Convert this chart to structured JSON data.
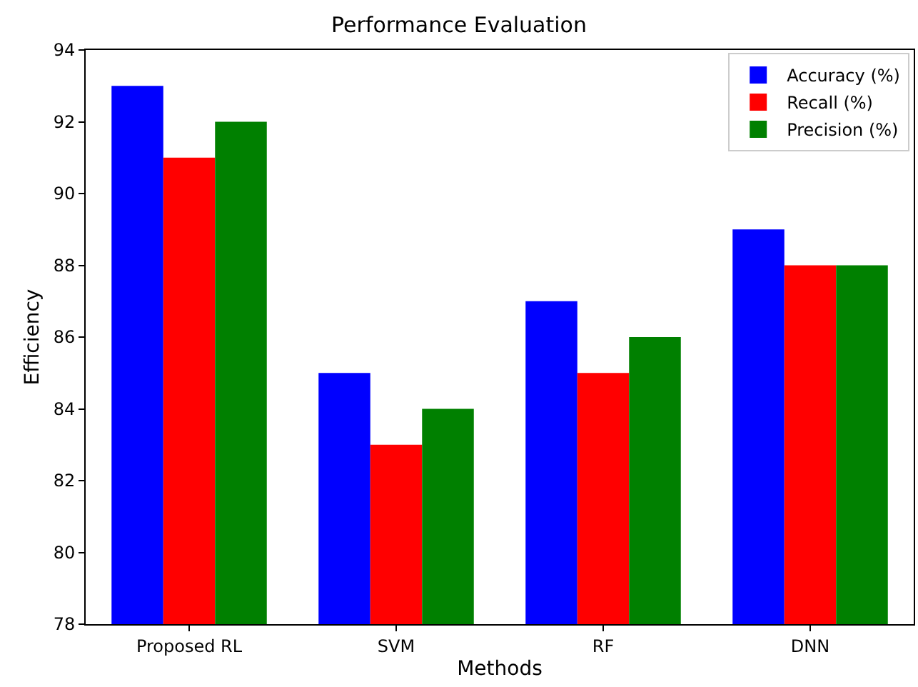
{
  "chart_data": {
    "type": "bar",
    "title": "Performance Evaluation",
    "xlabel": "Methods",
    "ylabel": "Efficiency",
    "categories": [
      "Proposed RL",
      "SVM",
      "RF",
      "DNN"
    ],
    "series": [
      {
        "name": "Accuracy (%)",
        "color": "#0000ff",
        "values": [
          93,
          85,
          87,
          89
        ]
      },
      {
        "name": "Recall (%)",
        "color": "#ff0000",
        "values": [
          91,
          83,
          85,
          88
        ]
      },
      {
        "name": "Precision (%)",
        "color": "#008000",
        "values": [
          92,
          84,
          86,
          88
        ]
      }
    ],
    "ylim": [
      78,
      94
    ],
    "yticks": [
      78,
      80,
      82,
      84,
      86,
      88,
      90,
      92,
      94
    ],
    "grid": false,
    "legend": "top right"
  }
}
